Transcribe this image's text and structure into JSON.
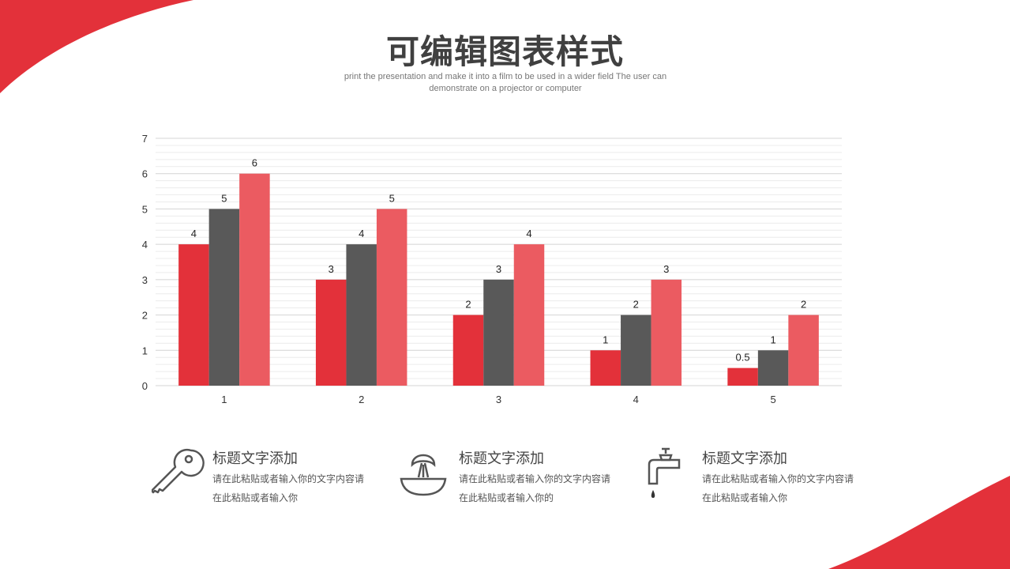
{
  "header": {
    "title": "可编辑图表样式",
    "subtitle": "print the presentation and make it into a film to be used in a wider field The user can demonstrate on a projector or computer"
  },
  "colors": {
    "accent": "#e3313a",
    "dark": "#595959",
    "light": "#eb5b61"
  },
  "chart_data": {
    "type": "bar",
    "categories": [
      "1",
      "2",
      "3",
      "4",
      "5"
    ],
    "series": [
      {
        "values": [
          4,
          3,
          2,
          1,
          0.5
        ],
        "color": "#e3313a"
      },
      {
        "values": [
          5,
          4,
          3,
          2,
          1
        ],
        "color": "#595959"
      },
      {
        "values": [
          6,
          5,
          4,
          3,
          2
        ],
        "color": "#eb5b61"
      }
    ],
    "ylim": [
      0,
      7
    ],
    "yticks": [
      "0",
      "1",
      "2",
      "3",
      "4",
      "5",
      "6",
      "7"
    ],
    "grid": true,
    "data_labels": true
  },
  "features": [
    {
      "icon": "key-icon",
      "title": "标题文字添加",
      "text": "请在此粘贴或者输入你的文字内容请在此粘贴或者输入你"
    },
    {
      "icon": "juicer-icon",
      "title": "标题文字添加",
      "text": "请在此粘贴或者输入你的文字内容请在此粘贴或者输入你的"
    },
    {
      "icon": "faucet-icon",
      "title": "标题文字添加",
      "text": "请在此粘贴或者输入你的文字内容请在此粘贴或者输入你"
    }
  ]
}
